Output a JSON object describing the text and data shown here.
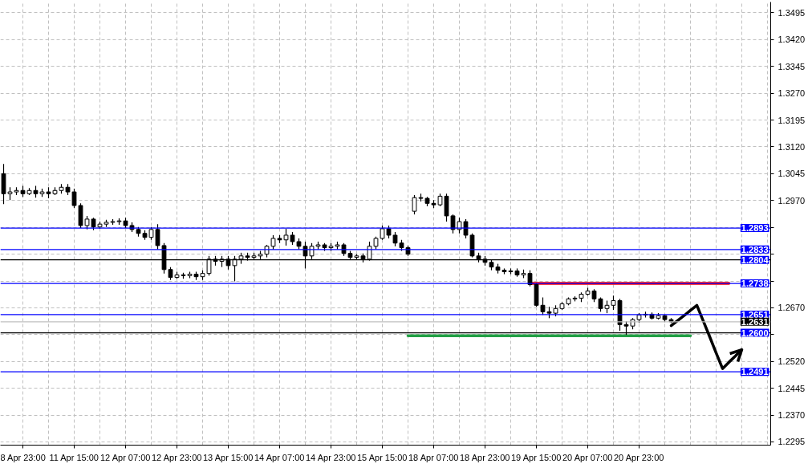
{
  "chart_data": {
    "type": "candlestick",
    "ylim": [
      1.2286,
      1.3525
    ],
    "categories": [
      null,
      null,
      null,
      "8 Apr 23:00",
      null,
      null,
      null,
      null,
      null,
      null,
      null,
      "11 Apr 15:00",
      null,
      null,
      null,
      null,
      null,
      null,
      null,
      "12 Apr 07:00",
      null,
      null,
      null,
      null,
      null,
      null,
      null,
      "12 Apr 23:00",
      null,
      null,
      null,
      null,
      null,
      null,
      null,
      "13 Apr 15:00",
      null,
      null,
      null,
      null,
      null,
      null,
      null,
      "14 Apr 07:00",
      null,
      null,
      null,
      null,
      null,
      null,
      null,
      "14 Apr 23:00",
      null,
      null,
      null,
      null,
      null,
      null,
      null,
      "15 Apr 15:00",
      null,
      null,
      null,
      null,
      null,
      null,
      null,
      "18 Apr 07:00",
      null,
      null,
      null,
      null,
      null,
      null,
      null,
      "18 Apr 23:00",
      null,
      null,
      null,
      null,
      null,
      null,
      null,
      "19 Apr 15:00",
      null,
      null,
      null,
      null,
      null,
      null,
      null,
      "20 Apr 07:00",
      null,
      null,
      null,
      null,
      null,
      null,
      null,
      "20 Apr 23:00",
      null,
      null,
      null,
      null,
      null,
      null,
      null,
      null,
      null,
      null,
      null,
      null,
      null,
      null,
      null,
      null,
      null,
      null,
      null,
      null
    ],
    "yticks": [
      {
        "value": 1.3495,
        "label": "1.3495"
      },
      {
        "value": 1.342,
        "label": "1.3420"
      },
      {
        "value": 1.3345,
        "label": "1.3345"
      },
      {
        "value": 1.327,
        "label": "1.3270"
      },
      {
        "value": 1.3195,
        "label": "1.3195"
      },
      {
        "value": 1.312,
        "label": "1.3120"
      },
      {
        "value": 1.3045,
        "label": "1.3045"
      },
      {
        "value": 1.297,
        "label": "1.2970"
      },
      {
        "value": 1.2895,
        "label": null
      },
      {
        "value": 1.282,
        "label": null
      },
      {
        "value": 1.2745,
        "label": null
      },
      {
        "value": 1.267,
        "label": "1.2670"
      },
      {
        "value": 1.2595,
        "label": null
      },
      {
        "value": 1.252,
        "label": "1.2520"
      },
      {
        "value": 1.2445,
        "label": "1.2445"
      },
      {
        "value": 1.237,
        "label": "1.2370"
      },
      {
        "value": 1.2295,
        "label": "1.2295"
      }
    ],
    "grid": true,
    "series": [
      {
        "color": "#000000",
        "ohlc": [
          [
            1.3045,
            1.3072,
            1.296,
            1.2989
          ],
          [
            1.2989,
            1.3007,
            1.2971,
            1.2994
          ],
          [
            1.2994,
            1.3007,
            1.2985,
            1.2998
          ],
          [
            1.2998,
            1.3011,
            1.298,
            1.2989
          ],
          [
            1.2989,
            1.3005,
            1.2985,
            1.2998
          ],
          [
            1.2998,
            1.3011,
            1.2978,
            1.2989
          ],
          [
            1.2989,
            1.3003,
            1.298,
            1.2994
          ],
          [
            1.2994,
            1.3007,
            1.2976,
            1.2989
          ],
          [
            1.2989,
            1.3007,
            1.2985,
            1.2998
          ],
          [
            1.2998,
            1.3016,
            1.2989,
            1.3007
          ],
          [
            1.3007,
            1.3016,
            1.2985,
            1.2994
          ],
          [
            1.2994,
            1.3003,
            1.2949,
            1.2956
          ],
          [
            1.2956,
            1.2962,
            1.2893,
            1.29
          ],
          [
            1.29,
            1.2927,
            1.2889,
            1.2918
          ],
          [
            1.2918,
            1.2922,
            1.2887,
            1.2896
          ],
          [
            1.2896,
            1.2911,
            1.2891,
            1.2904
          ],
          [
            1.2904,
            1.2916,
            1.2896,
            1.2909
          ],
          [
            1.2909,
            1.2918,
            1.2902,
            1.2911
          ],
          [
            1.2911,
            1.292,
            1.2902,
            1.2913
          ],
          [
            1.2913,
            1.2922,
            1.2893,
            1.29
          ],
          [
            1.29,
            1.2909,
            1.2882,
            1.2889
          ],
          [
            1.2889,
            1.2896,
            1.2869,
            1.2878
          ],
          [
            1.2878,
            1.2887,
            1.286,
            1.2867
          ],
          [
            1.2867,
            1.2896,
            1.286,
            1.2889
          ],
          [
            1.2889,
            1.2904,
            1.2833,
            1.2844
          ],
          [
            1.2844,
            1.2851,
            1.2766,
            1.2777
          ],
          [
            1.2777,
            1.2784,
            1.2748,
            1.2755
          ],
          [
            1.2755,
            1.2771,
            1.2751,
            1.2762
          ],
          [
            1.2762,
            1.2768,
            1.2751,
            1.276
          ],
          [
            1.276,
            1.2771,
            1.2753,
            1.2764
          ],
          [
            1.2764,
            1.2771,
            1.2748,
            1.2757
          ],
          [
            1.2757,
            1.2775,
            1.2748,
            1.2766
          ],
          [
            1.2766,
            1.2815,
            1.276,
            1.2806
          ],
          [
            1.2806,
            1.2815,
            1.2788,
            1.28
          ],
          [
            1.28,
            1.2815,
            1.2784,
            1.2806
          ],
          [
            1.2806,
            1.2815,
            1.2777,
            1.2788
          ],
          [
            1.2788,
            1.2815,
            1.2744,
            1.2806
          ],
          [
            1.2806,
            1.2824,
            1.2793,
            1.2815
          ],
          [
            1.2815,
            1.2824,
            1.2802,
            1.2811
          ],
          [
            1.2811,
            1.2824,
            1.2804,
            1.2815
          ],
          [
            1.2815,
            1.2829,
            1.2806,
            1.282
          ],
          [
            1.282,
            1.2846,
            1.2811,
            1.2842
          ],
          [
            1.2842,
            1.2873,
            1.2833,
            1.2864
          ],
          [
            1.2864,
            1.2873,
            1.2851,
            1.286
          ],
          [
            1.286,
            1.2891,
            1.2844,
            1.2873
          ],
          [
            1.2873,
            1.2882,
            1.2846,
            1.2855
          ],
          [
            1.2855,
            1.2864,
            1.2833,
            1.2842
          ],
          [
            1.2842,
            1.2855,
            1.278,
            1.2815
          ],
          [
            1.2815,
            1.2851,
            1.2806,
            1.2842
          ],
          [
            1.2842,
            1.2855,
            1.2833,
            1.2846
          ],
          [
            1.2846,
            1.2851,
            1.2829,
            1.2838
          ],
          [
            1.2838,
            1.2851,
            1.2829,
            1.2842
          ],
          [
            1.2842,
            1.2855,
            1.2833,
            1.2846
          ],
          [
            1.2846,
            1.2851,
            1.2815,
            1.2822
          ],
          [
            1.2822,
            1.2829,
            1.2804,
            1.2811
          ],
          [
            1.2811,
            1.282,
            1.2804,
            1.2815
          ],
          [
            1.2815,
            1.2822,
            1.2797,
            1.2806
          ],
          [
            1.2806,
            1.2855,
            1.2802,
            1.2842
          ],
          [
            1.2842,
            1.2869,
            1.2833,
            1.2864
          ],
          [
            1.2864,
            1.29,
            1.286,
            1.2891
          ],
          [
            1.2891,
            1.29,
            1.2864,
            1.2873
          ],
          [
            1.2873,
            1.2882,
            1.2842,
            1.2851
          ],
          [
            1.2851,
            1.286,
            1.2829,
            1.2838
          ],
          [
            1.2838,
            1.2844,
            1.2815,
            1.282
          ],
          [
            1.294,
            1.2985,
            1.2931,
            1.2978
          ],
          [
            1.2978,
            1.2989,
            1.2967,
            1.2976
          ],
          [
            1.2976,
            1.298,
            1.2954,
            1.2962
          ],
          [
            1.2962,
            1.2971,
            1.2949,
            1.2958
          ],
          [
            1.2958,
            1.2989,
            1.2954,
            1.2982
          ],
          [
            1.2982,
            1.2989,
            1.2911,
            1.2927
          ],
          [
            1.2927,
            1.2931,
            1.2878,
            1.2889
          ],
          [
            1.2889,
            1.2922,
            1.2878,
            1.2911
          ],
          [
            1.2911,
            1.2918,
            1.2864,
            1.2873
          ],
          [
            1.2873,
            1.2878,
            1.2811,
            1.2815
          ],
          [
            1.2815,
            1.2824,
            1.2797,
            1.2806
          ],
          [
            1.2806,
            1.2815,
            1.2788,
            1.2797
          ],
          [
            1.2797,
            1.2804,
            1.2775,
            1.2784
          ],
          [
            1.2784,
            1.2793,
            1.2766,
            1.2775
          ],
          [
            1.2775,
            1.278,
            1.2764,
            1.2771
          ],
          [
            1.2771,
            1.278,
            1.2764,
            1.2773
          ],
          [
            1.2773,
            1.278,
            1.2757,
            1.2762
          ],
          [
            1.2762,
            1.2777,
            1.2753,
            1.2766
          ],
          [
            1.2766,
            1.2775,
            1.273,
            1.2735
          ],
          [
            1.2735,
            1.2739,
            1.2673,
            1.2677
          ],
          [
            1.2677,
            1.2699,
            1.265,
            1.2659
          ],
          [
            1.2659,
            1.2673,
            1.2641,
            1.2655
          ],
          [
            1.2655,
            1.2677,
            1.2646,
            1.2668
          ],
          [
            1.2668,
            1.2686,
            1.2664,
            1.2681
          ],
          [
            1.2681,
            1.2699,
            1.2677,
            1.2695
          ],
          [
            1.2695,
            1.2702,
            1.2688,
            1.2697
          ],
          [
            1.2697,
            1.2713,
            1.2686,
            1.2708
          ],
          [
            1.2708,
            1.2726,
            1.2704,
            1.2717
          ],
          [
            1.2717,
            1.2722,
            1.2686,
            1.2695
          ],
          [
            1.2695,
            1.2699,
            1.2659,
            1.2668
          ],
          [
            1.2668,
            1.269,
            1.2655,
            1.2677
          ],
          [
            1.2677,
            1.2704,
            1.2664,
            1.269
          ],
          [
            1.269,
            1.2695,
            1.2606,
            1.2623
          ],
          [
            1.2623,
            1.2632,
            1.2594,
            1.2619
          ],
          [
            1.2619,
            1.2641,
            1.261,
            1.2637
          ],
          [
            1.2637,
            1.2655,
            1.2628,
            1.265
          ],
          [
            1.265,
            1.2659,
            1.2643,
            1.2652
          ],
          [
            1.2652,
            1.2657,
            1.2637,
            1.2641
          ],
          [
            1.2641,
            1.2655,
            1.2637,
            1.2648
          ],
          [
            1.2648,
            1.265,
            1.263,
            1.2637
          ],
          [
            1.2637,
            1.2641,
            1.2628,
            1.2631
          ],
          null,
          null,
          null,
          null,
          null,
          null,
          null,
          null,
          null,
          null,
          null,
          null,
          null,
          null,
          null
        ]
      },
      {
        "type": "line",
        "color": "#ff0000",
        "values": [
          null,
          null,
          null,
          null,
          null,
          null,
          null,
          null,
          null,
          null,
          null,
          null,
          null,
          null,
          null,
          null,
          null,
          null,
          null,
          null,
          null,
          null,
          null,
          null,
          null,
          null,
          null,
          null,
          null,
          null,
          null,
          null,
          null,
          null,
          null,
          null,
          null,
          null,
          null,
          null,
          null,
          null,
          null,
          null,
          null,
          null,
          null,
          null,
          null,
          null,
          null,
          null,
          null,
          null,
          null,
          null,
          null,
          null,
          null,
          null,
          null,
          null,
          null,
          null,
          null,
          null,
          null,
          null,
          null,
          null,
          null,
          null,
          null,
          null,
          null,
          null,
          null,
          null,
          null,
          null,
          null,
          null,
          1.2738,
          1.2738,
          1.2738,
          1.2738,
          1.2738,
          1.2738,
          1.2738,
          1.2738,
          1.2738,
          1.2738,
          1.2738,
          1.2738,
          1.2738,
          1.2738,
          1.2738,
          1.2738,
          1.2738,
          1.2738,
          1.2738,
          1.2738,
          1.2738,
          1.2738,
          1.2738,
          1.2738,
          1.2738,
          1.2738,
          1.2738,
          1.2738,
          1.2738,
          1.2738,
          1.2738,
          1.2738,
          null,
          null,
          null,
          null,
          null,
          null
        ]
      },
      {
        "type": "line",
        "color": "#22a045",
        "values": [
          null,
          null,
          null,
          null,
          null,
          null,
          null,
          null,
          null,
          null,
          null,
          null,
          null,
          null,
          null,
          null,
          null,
          null,
          null,
          null,
          null,
          null,
          null,
          null,
          null,
          null,
          null,
          null,
          null,
          null,
          null,
          null,
          null,
          null,
          null,
          null,
          null,
          null,
          null,
          null,
          null,
          null,
          null,
          null,
          null,
          null,
          null,
          null,
          null,
          null,
          null,
          null,
          null,
          null,
          null,
          null,
          null,
          null,
          null,
          null,
          null,
          null,
          null,
          1.2592,
          1.2592,
          1.2592,
          1.2592,
          1.2592,
          1.2592,
          1.2592,
          1.2592,
          1.2592,
          1.2592,
          1.2592,
          1.2592,
          1.2592,
          1.2592,
          1.2592,
          1.2592,
          1.2592,
          1.2592,
          1.2592,
          1.2592,
          1.2592,
          1.2592,
          1.2592,
          1.2592,
          1.2592,
          1.2592,
          1.2592,
          1.2592,
          1.2592,
          1.2592,
          1.2592,
          1.2592,
          1.2592,
          1.2592,
          1.2592,
          1.2592,
          1.2592,
          1.2592,
          1.2592,
          1.2592,
          1.2592,
          1.2592,
          1.2592,
          1.2592,
          1.2592,
          null,
          null,
          null,
          null,
          null,
          null,
          null,
          null,
          null,
          null,
          null,
          null
        ]
      },
      {
        "type": "line",
        "color": "#000000",
        "values": [
          null,
          null,
          null,
          null,
          null,
          null,
          null,
          null,
          null,
          null,
          null,
          null,
          null,
          null,
          null,
          null,
          null,
          null,
          null,
          null,
          null,
          null,
          null,
          null,
          null,
          null,
          null,
          null,
          null,
          null,
          null,
          null,
          null,
          null,
          null,
          null,
          null,
          null,
          null,
          null,
          null,
          null,
          null,
          null,
          null,
          null,
          null,
          null,
          null,
          null,
          null,
          null,
          null,
          null,
          null,
          null,
          null,
          null,
          null,
          null,
          null,
          null,
          null,
          null,
          null,
          null,
          null,
          null,
          null,
          null,
          null,
          null,
          null,
          null,
          null,
          null,
          null,
          null,
          null,
          null,
          null,
          null,
          null,
          null,
          null,
          null,
          null,
          null,
          null,
          null,
          null,
          null,
          null,
          null,
          null,
          null,
          null,
          null,
          null,
          null,
          null,
          null,
          null,
          null,
          1.262,
          1.2634,
          1.2648,
          1.2663,
          1.2677,
          1.2633,
          1.2589,
          1.2544,
          1.25,
          1.2518,
          1.2535,
          1.2553,
          null,
          null,
          null,
          null
        ]
      }
    ],
    "ref_lines": [
      {
        "axis": "y",
        "value": 1.2893,
        "label": "1.2893",
        "color": "#0000ff"
      },
      {
        "axis": "y",
        "value": 1.2833,
        "label": "1.2833",
        "color": "#0000ff"
      },
      {
        "axis": "y",
        "value": 1.2804,
        "label": "1.2804",
        "color": "#000000"
      },
      {
        "axis": "y",
        "value": 1.2738,
        "label": "1.2738",
        "color": "#0000ff"
      },
      {
        "axis": "y",
        "value": 1.2651,
        "label": "1.2651",
        "color": "#0000ff"
      },
      {
        "axis": "y",
        "value": 1.2631,
        "label": "1.2631",
        "color": "#c0c0c0"
      },
      {
        "axis": "y",
        "value": 1.26,
        "label": "1.2600",
        "color": "#000000"
      },
      {
        "axis": "y",
        "value": 1.2491,
        "label": "1.2491",
        "color": "#0000ff"
      }
    ]
  }
}
